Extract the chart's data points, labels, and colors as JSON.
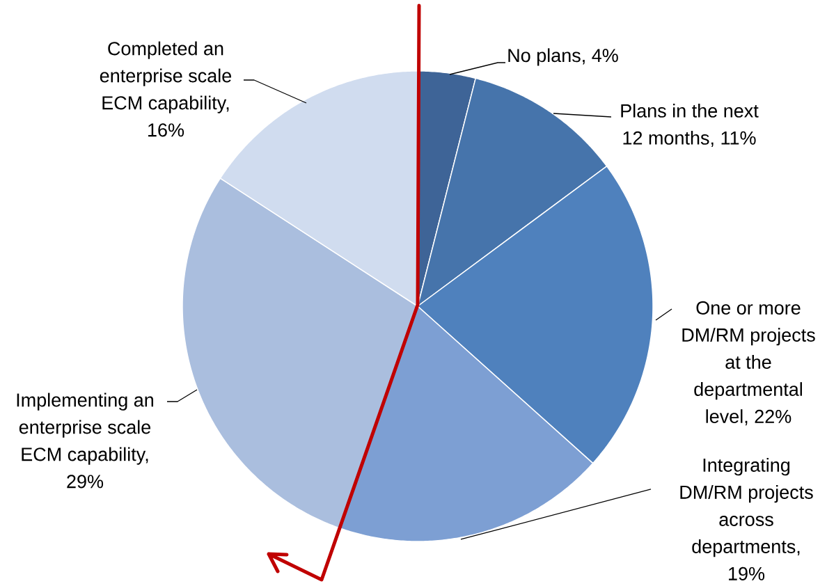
{
  "chart_data": {
    "type": "pie",
    "categories": [
      "No plans, 4%",
      "Plans in the next 12 months, 11%",
      "One or more DM/RM projects at the departmental level, 22%",
      "Integrating DM/RM projects across departments, 19%",
      "Implementing an enterprise scale ECM capability, 29%",
      "Completed an enterprise scale ECM capability, 16%"
    ],
    "values": [
      4,
      11,
      22,
      19,
      29,
      16
    ],
    "colors": [
      "#3e6497",
      "#4674ab",
      "#4f81bd",
      "#7d9fd3",
      "#aabede",
      "#d0dcef"
    ]
  }
}
